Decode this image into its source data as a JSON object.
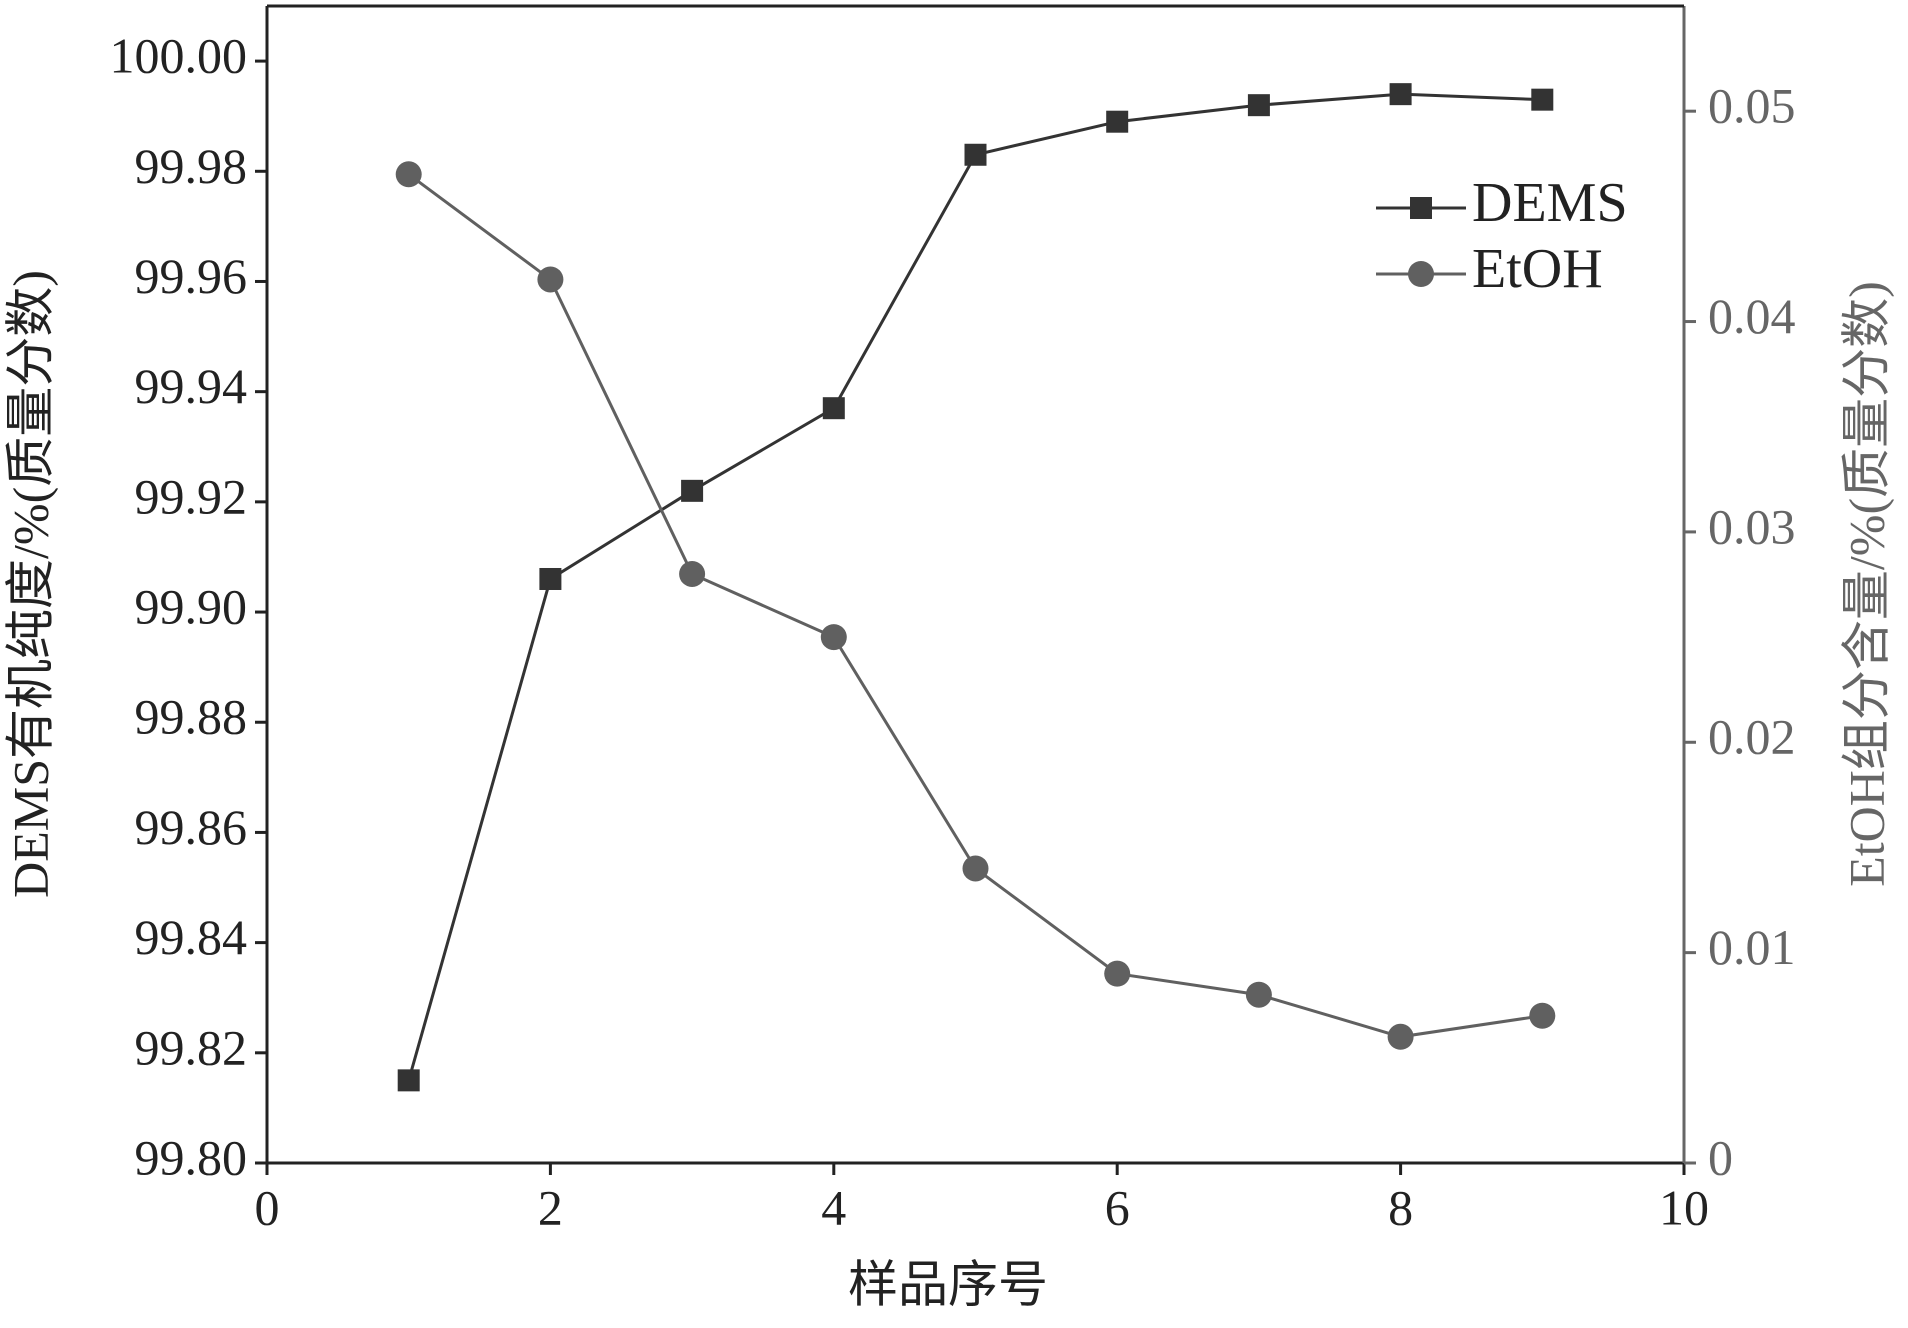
{
  "chart_data": {
    "type": "line",
    "x_label": "样品序号",
    "y_label": "DEMS有机纯度/%(质量分数)",
    "y2_label": "EtOH组分含量/%(质量分数)",
    "x": [
      1,
      2,
      3,
      4,
      5,
      6,
      7,
      8,
      9
    ],
    "series": [
      {
        "name": "DEMS",
        "color": "#333333",
        "marker": "square",
        "values": [
          99.815,
          99.906,
          99.922,
          99.937,
          99.983,
          99.989,
          99.992,
          99.994,
          99.993
        ]
      },
      {
        "name": "EtOH",
        "color": "#606060",
        "marker": "circle",
        "axis": "y2",
        "values": [
          0.047,
          0.042,
          0.028,
          0.025,
          0.014,
          0.009,
          0.008,
          0.006,
          0.007
        ]
      }
    ],
    "xlim": [
      0,
      10
    ],
    "xticks": [
      0,
      2,
      4,
      6,
      8,
      10
    ],
    "ylim": [
      99.8,
      100.01
    ],
    "yticks": [
      {
        "value": 99.8,
        "label": "99.80"
      },
      99.82,
      99.84,
      99.86,
      99.88,
      {
        "value": 99.9,
        "label": "99.90"
      },
      99.92,
      99.94,
      99.96,
      99.98,
      {
        "value": 100,
        "label": "100.00"
      }
    ],
    "y2lim": [
      0,
      0.055
    ],
    "y2ticks": [
      0,
      0.01,
      0.02,
      0.03,
      0.04,
      0.05
    ],
    "y2_color": "#666666",
    "legend": "upper right",
    "grid": false
  }
}
